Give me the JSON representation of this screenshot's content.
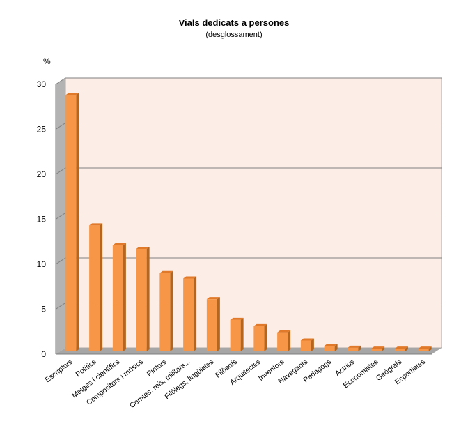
{
  "chart_data": {
    "type": "bar",
    "title": "Vials dedicats a persones",
    "subtitle": "(desglossament)",
    "ylabel": "%",
    "xlabel": "",
    "ylim": [
      0,
      30
    ],
    "yticks": [
      0,
      5,
      10,
      15,
      20,
      25,
      30
    ],
    "grid": true,
    "categories": [
      "Escriptors",
      "Polítics",
      "Metges i científics",
      "Compositors i músics",
      "Pintors",
      "Comtes, reis, militars...",
      "Filòlegs, lingüistes",
      "Filòsofs",
      "Arquitectes",
      "Inventors",
      "Navegants",
      "Pedagogs",
      "Actrius",
      "Economistes",
      "Geògrafs",
      "Esportistes"
    ],
    "values": [
      28.5,
      14.0,
      11.8,
      11.4,
      8.7,
      8.1,
      5.8,
      3.5,
      2.8,
      2.1,
      1.2,
      0.6,
      0.4,
      0.3,
      0.3,
      0.3
    ],
    "colors": {
      "bar_front": "#F79646",
      "bar_side": "#B5651D",
      "bar_top": "#E07A2A",
      "plot_back": "#FCEDE6",
      "side_wall": "#B3B3B3",
      "floor": "#A6A6A6",
      "gridline": "#7F7F7F"
    }
  }
}
